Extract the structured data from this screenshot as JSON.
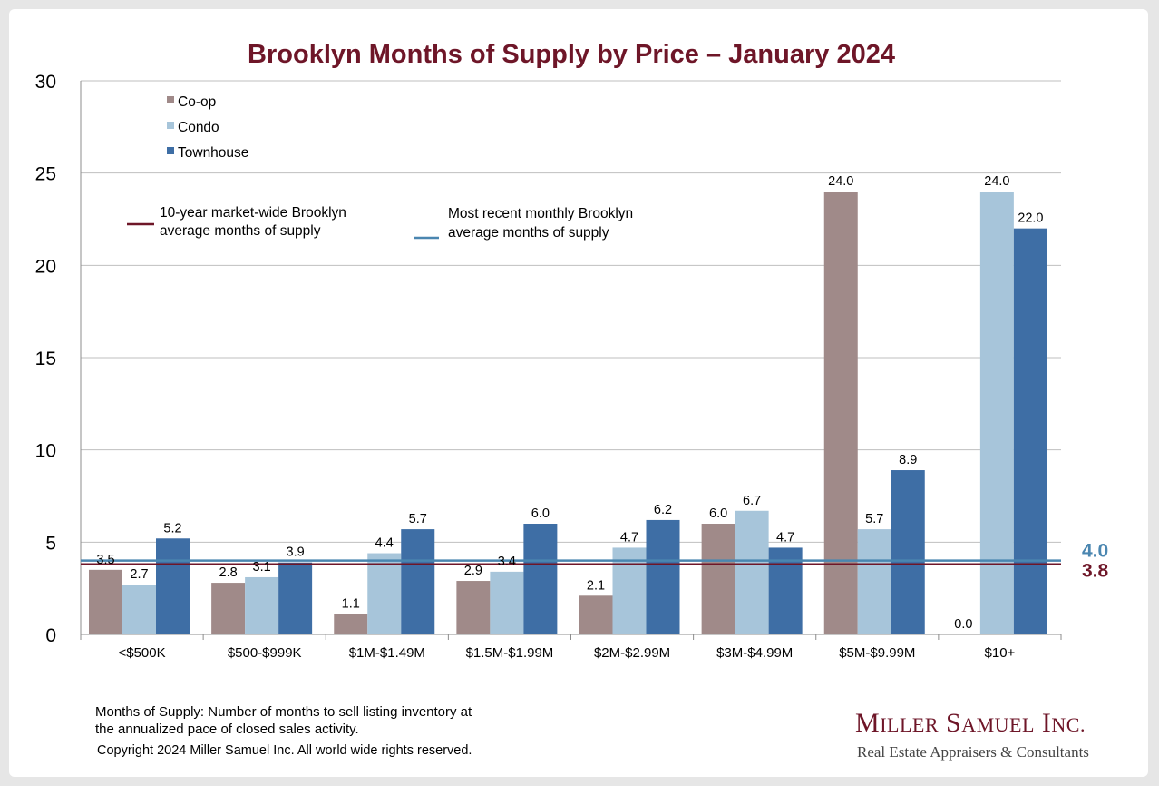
{
  "title": "Brooklyn Months of Supply by Price – January 2024",
  "colors": {
    "coop": "#a08a89",
    "condo": "#a7c5da",
    "townhouse": "#3e6ea5",
    "ten_year_line": "#6e1628",
    "recent_line": "#4a86b0",
    "title": "#6e1628"
  },
  "chart_data": {
    "type": "bar",
    "title": "Brooklyn Months of Supply by Price – January 2024",
    "categories": [
      "<$500K",
      "$500-$999K",
      "$1M-$1.49M",
      "$1.5M-$1.99M",
      "$2M-$2.99M",
      "$3M-$4.99M",
      "$5M-$9.99M",
      "$10+"
    ],
    "series": [
      {
        "name": "Co-op",
        "values": [
          3.5,
          2.8,
          1.1,
          2.9,
          2.1,
          6.0,
          24.0,
          0.0
        ],
        "labels": [
          "3.5",
          "2.8",
          "1.1",
          "2.9",
          "2.1",
          "6.0",
          "24.0",
          "0.0"
        ]
      },
      {
        "name": "Condo",
        "values": [
          2.7,
          3.1,
          4.4,
          3.4,
          4.7,
          6.7,
          5.7,
          24.0
        ],
        "labels": [
          "2.7",
          "3.1",
          "4.4",
          "3.4",
          "4.7",
          "6.7",
          "5.7",
          "24.0"
        ]
      },
      {
        "name": "Townhouse",
        "values": [
          5.2,
          3.9,
          5.7,
          6.0,
          6.2,
          4.7,
          8.9,
          22.0
        ],
        "labels": [
          "5.2",
          "3.9",
          "5.7",
          "6.0",
          "6.2",
          "4.7",
          "8.9",
          "22.0"
        ]
      }
    ],
    "reference_lines": [
      {
        "name": "10-year market-wide Brooklyn average months of supply",
        "value": 3.8,
        "label": "3.8"
      },
      {
        "name": "Most recent monthly Brooklyn average months of supply",
        "value": 4.0,
        "label": "4.0"
      }
    ],
    "yticks": [
      "0",
      "5",
      "10",
      "15",
      "20",
      "25",
      "30"
    ],
    "ylim": [
      0,
      30
    ],
    "grid": true,
    "legend_position": "top-left"
  },
  "legend": {
    "coop": "Co-op",
    "condo": "Condo",
    "townhouse": "Townhouse",
    "ten_year_line_1": "10-year market-wide Brooklyn",
    "ten_year_line_2": "average months of supply",
    "recent_line_1": "Most recent monthly Brooklyn",
    "recent_line_2": "average months of supply"
  },
  "footnote": {
    "line1": "Months of Supply: Number of months to sell listing inventory at",
    "line2": "the annualized pace of closed sales activity.",
    "copyright": "Copyright 2024 Miller Samuel Inc.  All world wide rights reserved."
  },
  "logo": {
    "m": "M",
    "iller": "ILLER",
    "s": "S",
    "amuel": "AMUEL",
    "i": "I",
    "nc": "NC.",
    "tagline": "Real Estate Appraisers & Consultants"
  }
}
